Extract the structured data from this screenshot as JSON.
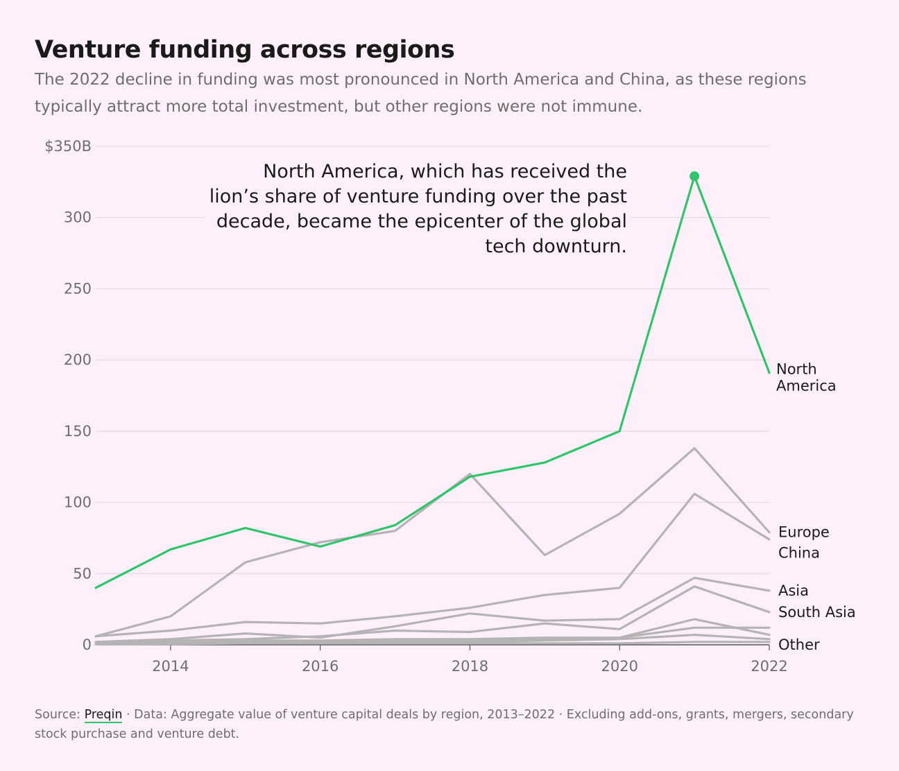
{
  "title": "Venture funding across regions",
  "subtitle": "The 2022 decline in funding was most pronounced in North America and China, as these regions typically attract more total investment, but other regions were not immune.",
  "annotation": "North America, which has received the lion’s share of venture funding over the past decade, became the epicenter of the global tech downturn.",
  "footer": {
    "source_prefix": "Source: ",
    "source_link": "Preqin",
    "source_rest": " · Data: Aggregate value of venture capital deals by region, 2013–2022 · Excluding add-ons, grants, mergers, secondary stock purchase and venture debt."
  },
  "colors": {
    "highlight": "#2fc56b",
    "muted": "#b5b3b6",
    "grid": "#e3d9e2",
    "background": "#fdf0fa"
  },
  "chart_data": {
    "type": "line",
    "x": [
      2013,
      2014,
      2015,
      2016,
      2017,
      2018,
      2019,
      2020,
      2021,
      2022
    ],
    "xlim": [
      2013,
      2022
    ],
    "ylim": [
      0,
      350
    ],
    "y_ticks": [
      {
        "value": 0,
        "label": "0"
      },
      {
        "value": 50,
        "label": "50"
      },
      {
        "value": 100,
        "label": "100"
      },
      {
        "value": 150,
        "label": "150"
      },
      {
        "value": 200,
        "label": "200"
      },
      {
        "value": 250,
        "label": "250"
      },
      {
        "value": 300,
        "label": "300"
      },
      {
        "value": 350,
        "label": "$350B"
      }
    ],
    "x_ticks": [
      {
        "value": 2014,
        "label": "2014"
      },
      {
        "value": 2016,
        "label": "2016"
      },
      {
        "value": 2018,
        "label": "2018"
      },
      {
        "value": 2020,
        "label": "2020"
      },
      {
        "value": 2022,
        "label": "2022"
      }
    ],
    "grid": true,
    "series": [
      {
        "name": "North America",
        "label_lines": [
          "North",
          "America"
        ],
        "highlight": true,
        "peak_marker_year": 2021,
        "values": [
          40,
          67,
          82,
          69,
          84,
          118,
          128,
          150,
          329,
          191
        ]
      },
      {
        "name": "Europe",
        "label_lines": [
          "Europe"
        ],
        "highlight": false,
        "values": [
          6,
          20,
          58,
          72,
          80,
          120,
          63,
          92,
          138,
          79
        ]
      },
      {
        "name": "China",
        "label_lines": [
          "China"
        ],
        "highlight": false,
        "values": [
          6,
          10,
          16,
          15,
          20,
          26,
          35,
          40,
          106,
          74
        ]
      },
      {
        "name": "Asia",
        "label_lines": [
          "Asia"
        ],
        "highlight": false,
        "values": [
          2,
          4,
          8,
          5,
          13,
          22,
          17,
          18,
          47,
          38
        ]
      },
      {
        "name": "South Asia",
        "label_lines": [
          "South Asia"
        ],
        "highlight": false,
        "values": [
          1,
          3,
          4,
          6,
          10,
          9,
          15,
          11,
          41,
          23
        ]
      },
      {
        "name": "",
        "label_lines": [],
        "highlight": false,
        "values": [
          1,
          2,
          3,
          3,
          4,
          4,
          5,
          5,
          18,
          7
        ]
      },
      {
        "name": "",
        "label_lines": [],
        "highlight": false,
        "values": [
          1,
          1,
          2,
          2,
          3,
          3,
          4,
          5,
          12,
          12
        ]
      },
      {
        "name": "",
        "label_lines": [],
        "highlight": false,
        "values": [
          0.5,
          1,
          1,
          2,
          2,
          2,
          3,
          4,
          7,
          4
        ]
      },
      {
        "name": "Other",
        "label_lines": [
          "Other"
        ],
        "highlight": false,
        "values": [
          0.3,
          0.5,
          1,
          1,
          1,
          1,
          1,
          1,
          2,
          2
        ]
      }
    ]
  }
}
